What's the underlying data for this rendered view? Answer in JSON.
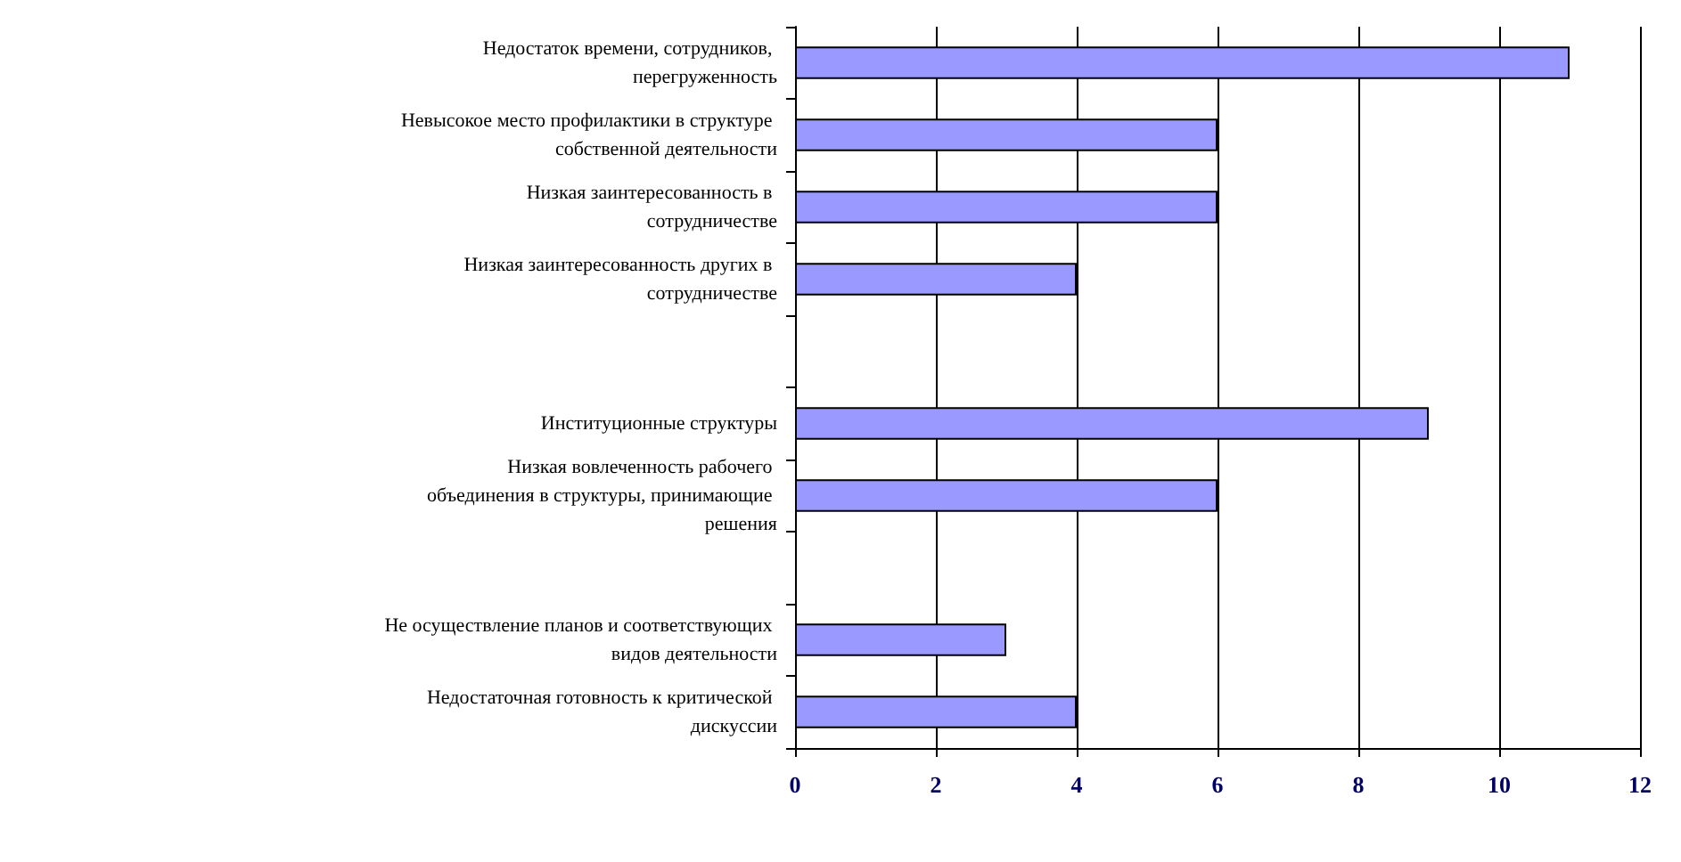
{
  "chart_data": {
    "type": "bar",
    "orientation": "horizontal",
    "categories": [
      "Недостаток времени, сотрудников, перегруженность",
      "Невысокое место профилактики в структуре собственной деятельности",
      "Низкая заинтересованность в сотрудничестве",
      "Низкая заинтересованность других в сотрудничестве",
      null,
      "Институционные структуры",
      "Низкая вовлеченность рабочего объединения в структуры, принимающие решения",
      null,
      "Не осуществление планов и соответствующих видов деятельности",
      "Недостаточная готовность к критической дискуссии"
    ],
    "values": [
      11,
      6,
      6,
      4,
      null,
      9,
      6,
      null,
      3,
      4
    ],
    "color": "#9999ff",
    "xlim": [
      0,
      12
    ],
    "xticks": [
      0,
      2,
      4,
      6,
      8,
      10,
      12
    ],
    "grid": "x"
  }
}
